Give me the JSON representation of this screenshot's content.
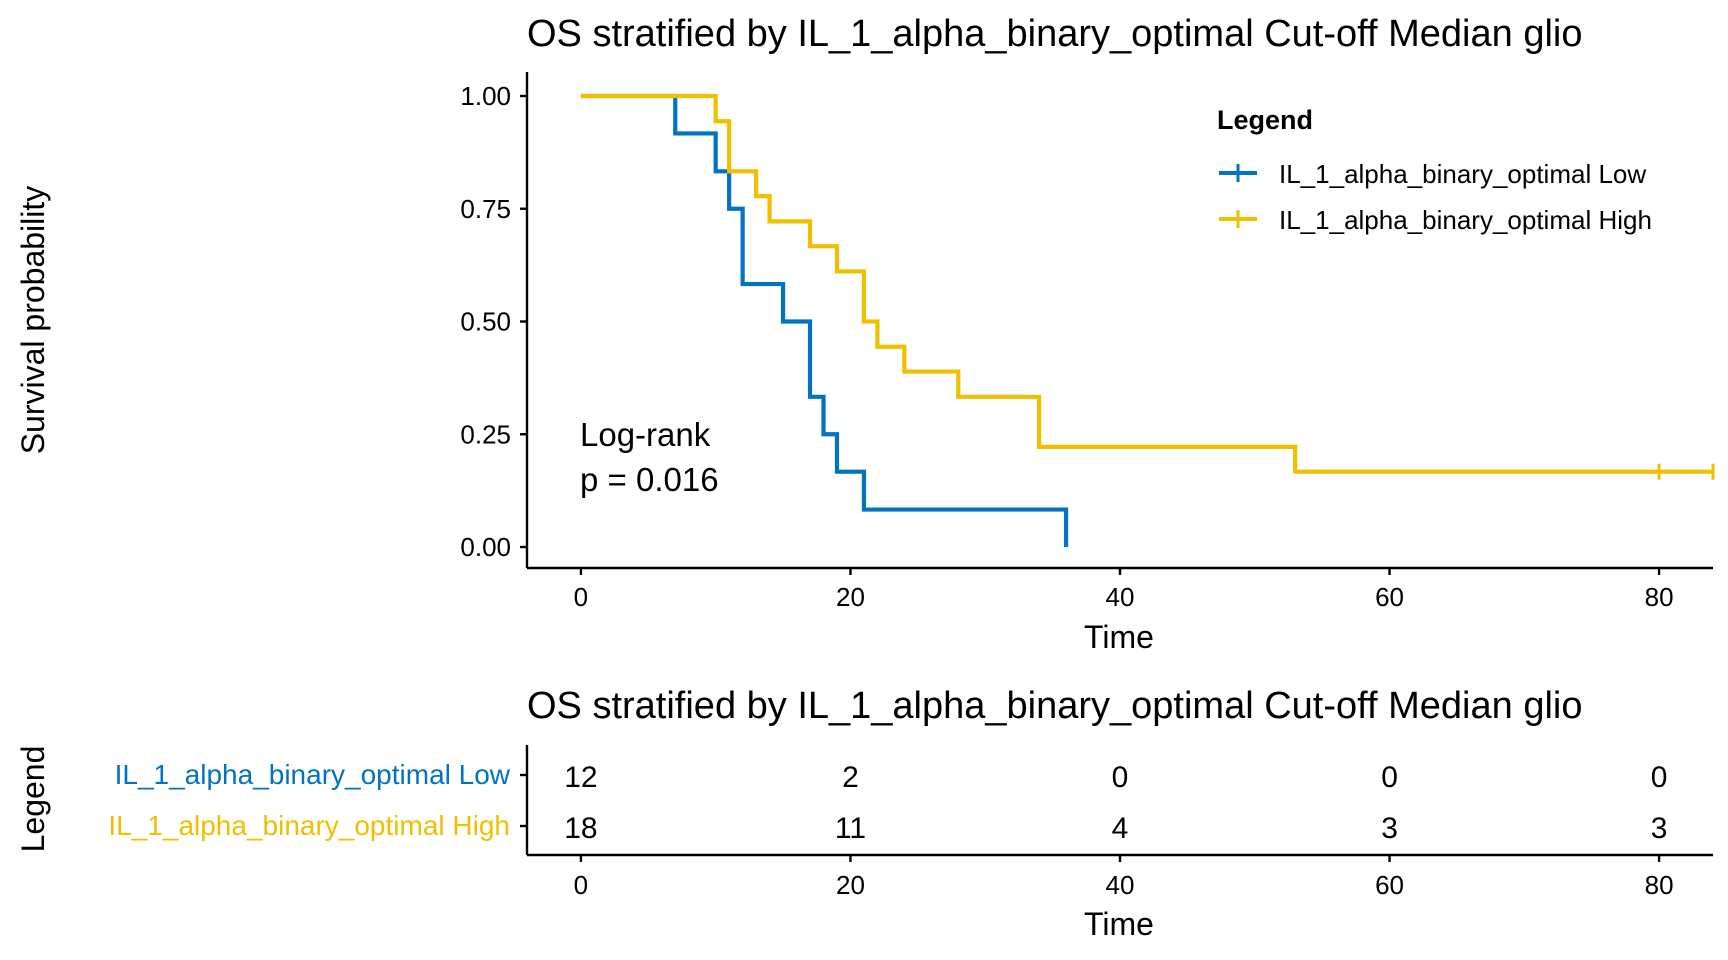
{
  "colors": {
    "low": "#0073C2",
    "high": "#EFC000"
  },
  "chart_data": [
    {
      "type": "line",
      "subtype": "kaplan-meier",
      "title": "OS stratified by IL_1_alpha_binary_optimal Cut-off Median glio",
      "xlabel": "Time",
      "ylabel": "Survival probability",
      "xlim": [
        -4,
        84
      ],
      "ylim": [
        0,
        1
      ],
      "x_ticks": [
        "0",
        "20",
        "40",
        "60",
        "80"
      ],
      "y_ticks": [
        "0.00",
        "0.25",
        "0.50",
        "0.75",
        "1.00"
      ],
      "legend": {
        "title": "Legend",
        "placement": "top-right",
        "entries": [
          "IL_1_alpha_binary_optimal Low",
          "IL_1_alpha_binary_optimal High"
        ]
      },
      "annotation": {
        "line1": "Log-rank",
        "line2": "p = 0.016"
      },
      "grid": false,
      "series": [
        {
          "name": "IL_1_alpha_binary_optimal Low",
          "color": "#0073C2",
          "steps": [
            [
              0,
              1.0
            ],
            [
              7,
              0.917
            ],
            [
              10,
              0.833
            ],
            [
              11,
              0.75
            ],
            [
              12,
              0.583
            ],
            [
              15,
              0.5
            ],
            [
              17,
              0.333
            ],
            [
              18,
              0.25
            ],
            [
              19,
              0.167
            ],
            [
              21,
              0.083
            ],
            [
              36,
              0.0
            ]
          ],
          "end_x": 36,
          "censor_x": []
        },
        {
          "name": "IL_1_alpha_binary_optimal High",
          "color": "#EFC000",
          "steps": [
            [
              0,
              1.0
            ],
            [
              10,
              0.944
            ],
            [
              11,
              0.833
            ],
            [
              13,
              0.778
            ],
            [
              14,
              0.722
            ],
            [
              17,
              0.667
            ],
            [
              19,
              0.611
            ],
            [
              21,
              0.5
            ],
            [
              22,
              0.444
            ],
            [
              24,
              0.389
            ],
            [
              28,
              0.333
            ],
            [
              34,
              0.222
            ],
            [
              53,
              0.167
            ]
          ],
          "end_x": 84,
          "censor_x": [
            80,
            84
          ]
        }
      ]
    },
    {
      "type": "table",
      "title": "OS stratified by IL_1_alpha_binary_optimal Cut-off Median glio",
      "xlabel": "Time",
      "ylabel": "Legend",
      "xlim": [
        -4,
        84
      ],
      "x_ticks": [
        "0",
        "20",
        "40",
        "60",
        "80"
      ],
      "time_points": [
        0,
        20,
        40,
        60,
        80
      ],
      "rows": [
        {
          "name": "IL_1_alpha_binary_optimal Low",
          "color": "#0073C2",
          "values": [
            12,
            2,
            0,
            0,
            0
          ]
        },
        {
          "name": "IL_1_alpha_binary_optimal High",
          "color": "#EFC000",
          "values": [
            18,
            11,
            4,
            3,
            3
          ]
        }
      ]
    }
  ]
}
